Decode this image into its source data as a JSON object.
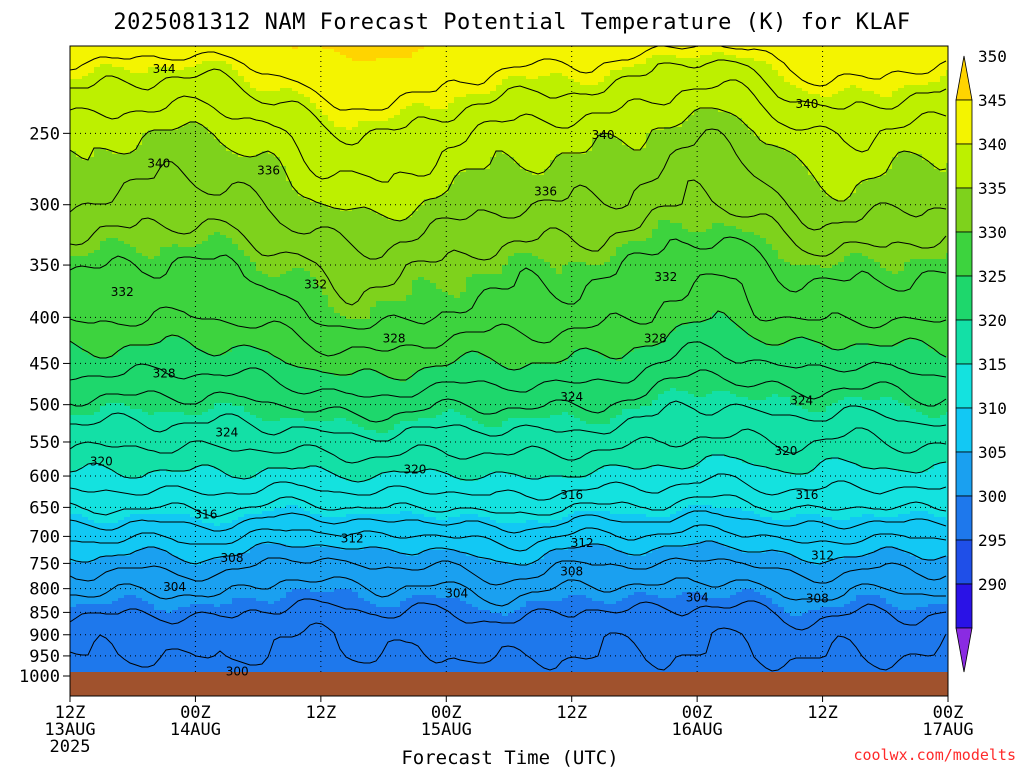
{
  "title": "2025081312 NAM Forecast Potential Temperature (K) for KLAF",
  "credit": "coolwx.com/modelts",
  "colors": {
    "ground": "#a0522d",
    "isoline": "#000000",
    "credit": "#ff2a2a"
  },
  "chart_data": {
    "type": "heatmap",
    "title": "2025081312 NAM Forecast Potential Temperature (K) for KLAF",
    "xlabel": "Forecast Time (UTC)",
    "ylabel": "",
    "x_ticks": [
      {
        "hour": 0,
        "lines": [
          "12Z",
          "13AUG",
          "2025"
        ]
      },
      {
        "hour": 12,
        "lines": [
          "00Z",
          "14AUG"
        ]
      },
      {
        "hour": 24,
        "lines": [
          "12Z"
        ]
      },
      {
        "hour": 36,
        "lines": [
          "00Z",
          "15AUG"
        ]
      },
      {
        "hour": 48,
        "lines": [
          "12Z"
        ]
      },
      {
        "hour": 60,
        "lines": [
          "00Z",
          "16AUG"
        ]
      },
      {
        "hour": 72,
        "lines": [
          "12Z"
        ]
      },
      {
        "hour": 84,
        "lines": [
          "00Z",
          "17AUG"
        ]
      }
    ],
    "xlim": [
      0,
      84
    ],
    "y_ticks": [
      250,
      300,
      350,
      400,
      450,
      500,
      550,
      600,
      650,
      700,
      750,
      800,
      850,
      900,
      950,
      1000
    ],
    "ylim": [
      1000,
      200
    ],
    "y_scale": "log-pressure",
    "colorbar": {
      "levels": [
        290,
        295,
        300,
        305,
        310,
        315,
        320,
        325,
        330,
        335,
        340,
        345,
        350
      ],
      "labels": [
        "350",
        "345",
        "340",
        "335",
        "330",
        "325",
        "320",
        "315",
        "310",
        "305",
        "300",
        "295",
        "290"
      ],
      "colors": [
        "#8a2be2",
        "#2a12e6",
        "#1f4fe8",
        "#1e78ec",
        "#1aa0f0",
        "#12c8f4",
        "#14e2df",
        "#13e0a6",
        "#1ed76c",
        "#3dd33e",
        "#7ed21c",
        "#bdf000",
        "#f4f400",
        "#ffd400"
      ]
    },
    "profile_1d": {
      "pressure": [
        1000,
        950,
        900,
        850,
        800,
        750,
        700,
        650,
        600,
        550,
        500,
        450,
        400,
        350,
        300,
        250,
        210
      ],
      "theta": [
        301,
        302,
        302.5,
        304,
        306,
        308.5,
        312,
        316,
        319.5,
        322.5,
        325.5,
        329,
        332.5,
        334.5,
        338,
        341,
        346
      ]
    },
    "contour_labels": [
      {
        "text": "344",
        "t": 9,
        "p": 212
      },
      {
        "text": "340",
        "t": 70.5,
        "p": 232
      },
      {
        "text": "340",
        "t": 8.5,
        "p": 270
      },
      {
        "text": "340",
        "t": 51,
        "p": 251
      },
      {
        "text": "336",
        "t": 19,
        "p": 275
      },
      {
        "text": "336",
        "t": 45.5,
        "p": 290
      },
      {
        "text": "332",
        "t": 5,
        "p": 375
      },
      {
        "text": "332",
        "t": 23.5,
        "p": 368
      },
      {
        "text": "332",
        "t": 57,
        "p": 361
      },
      {
        "text": "328",
        "t": 9,
        "p": 462
      },
      {
        "text": "328",
        "t": 31,
        "p": 422
      },
      {
        "text": "328",
        "t": 56,
        "p": 422
      },
      {
        "text": "324",
        "t": 15,
        "p": 537
      },
      {
        "text": "324",
        "t": 48,
        "p": 490
      },
      {
        "text": "324",
        "t": 70,
        "p": 495
      },
      {
        "text": "320",
        "t": 3,
        "p": 578
      },
      {
        "text": "320",
        "t": 33,
        "p": 590
      },
      {
        "text": "320",
        "t": 68.5,
        "p": 563
      },
      {
        "text": "316",
        "t": 13,
        "p": 662
      },
      {
        "text": "316",
        "t": 48,
        "p": 630
      },
      {
        "text": "316",
        "t": 70.5,
        "p": 630
      },
      {
        "text": "312",
        "t": 27,
        "p": 704
      },
      {
        "text": "312",
        "t": 49,
        "p": 712
      },
      {
        "text": "312",
        "t": 72,
        "p": 735
      },
      {
        "text": "308",
        "t": 15.5,
        "p": 740
      },
      {
        "text": "308",
        "t": 48,
        "p": 766
      },
      {
        "text": "308",
        "t": 71.5,
        "p": 820
      },
      {
        "text": "304",
        "t": 10,
        "p": 797
      },
      {
        "text": "304",
        "t": 37,
        "p": 810
      },
      {
        "text": "304",
        "t": 60,
        "p": 818
      },
      {
        "text": "300",
        "t": 16,
        "p": 988
      }
    ]
  }
}
